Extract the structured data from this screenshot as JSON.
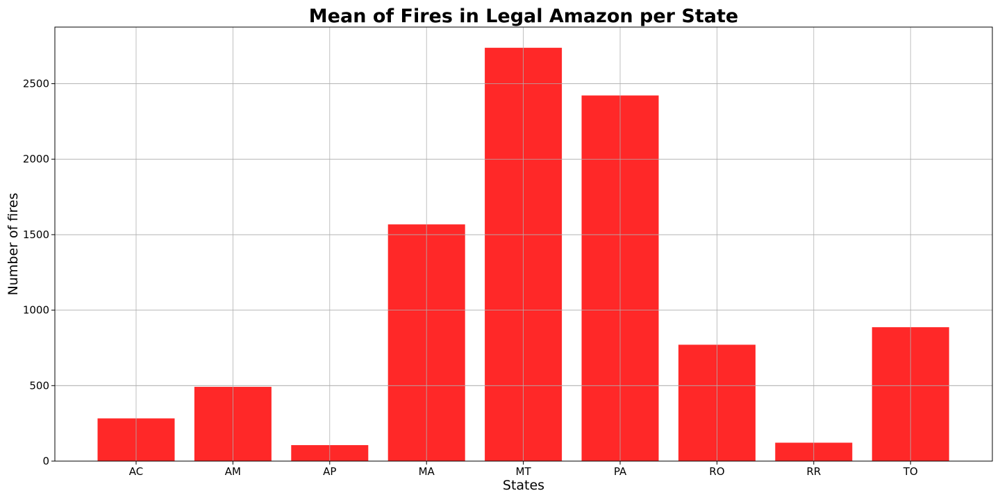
{
  "chart_data": {
    "type": "bar",
    "title": "Mean of Fires in Legal Amazon per State",
    "xlabel": "States",
    "ylabel": "Number of fires",
    "categories": [
      "AC",
      "AM",
      "AP",
      "MA",
      "MT",
      "PA",
      "RO",
      "RR",
      "TO"
    ],
    "values": [
      283,
      492,
      106,
      1568,
      2738,
      2422,
      771,
      122,
      887
    ],
    "ylim": [
      0,
      2875
    ],
    "yticks": [
      0,
      500,
      1000,
      1500,
      2000,
      2500
    ],
    "grid": true,
    "legend": "none",
    "bar_color": "#ff2828"
  }
}
